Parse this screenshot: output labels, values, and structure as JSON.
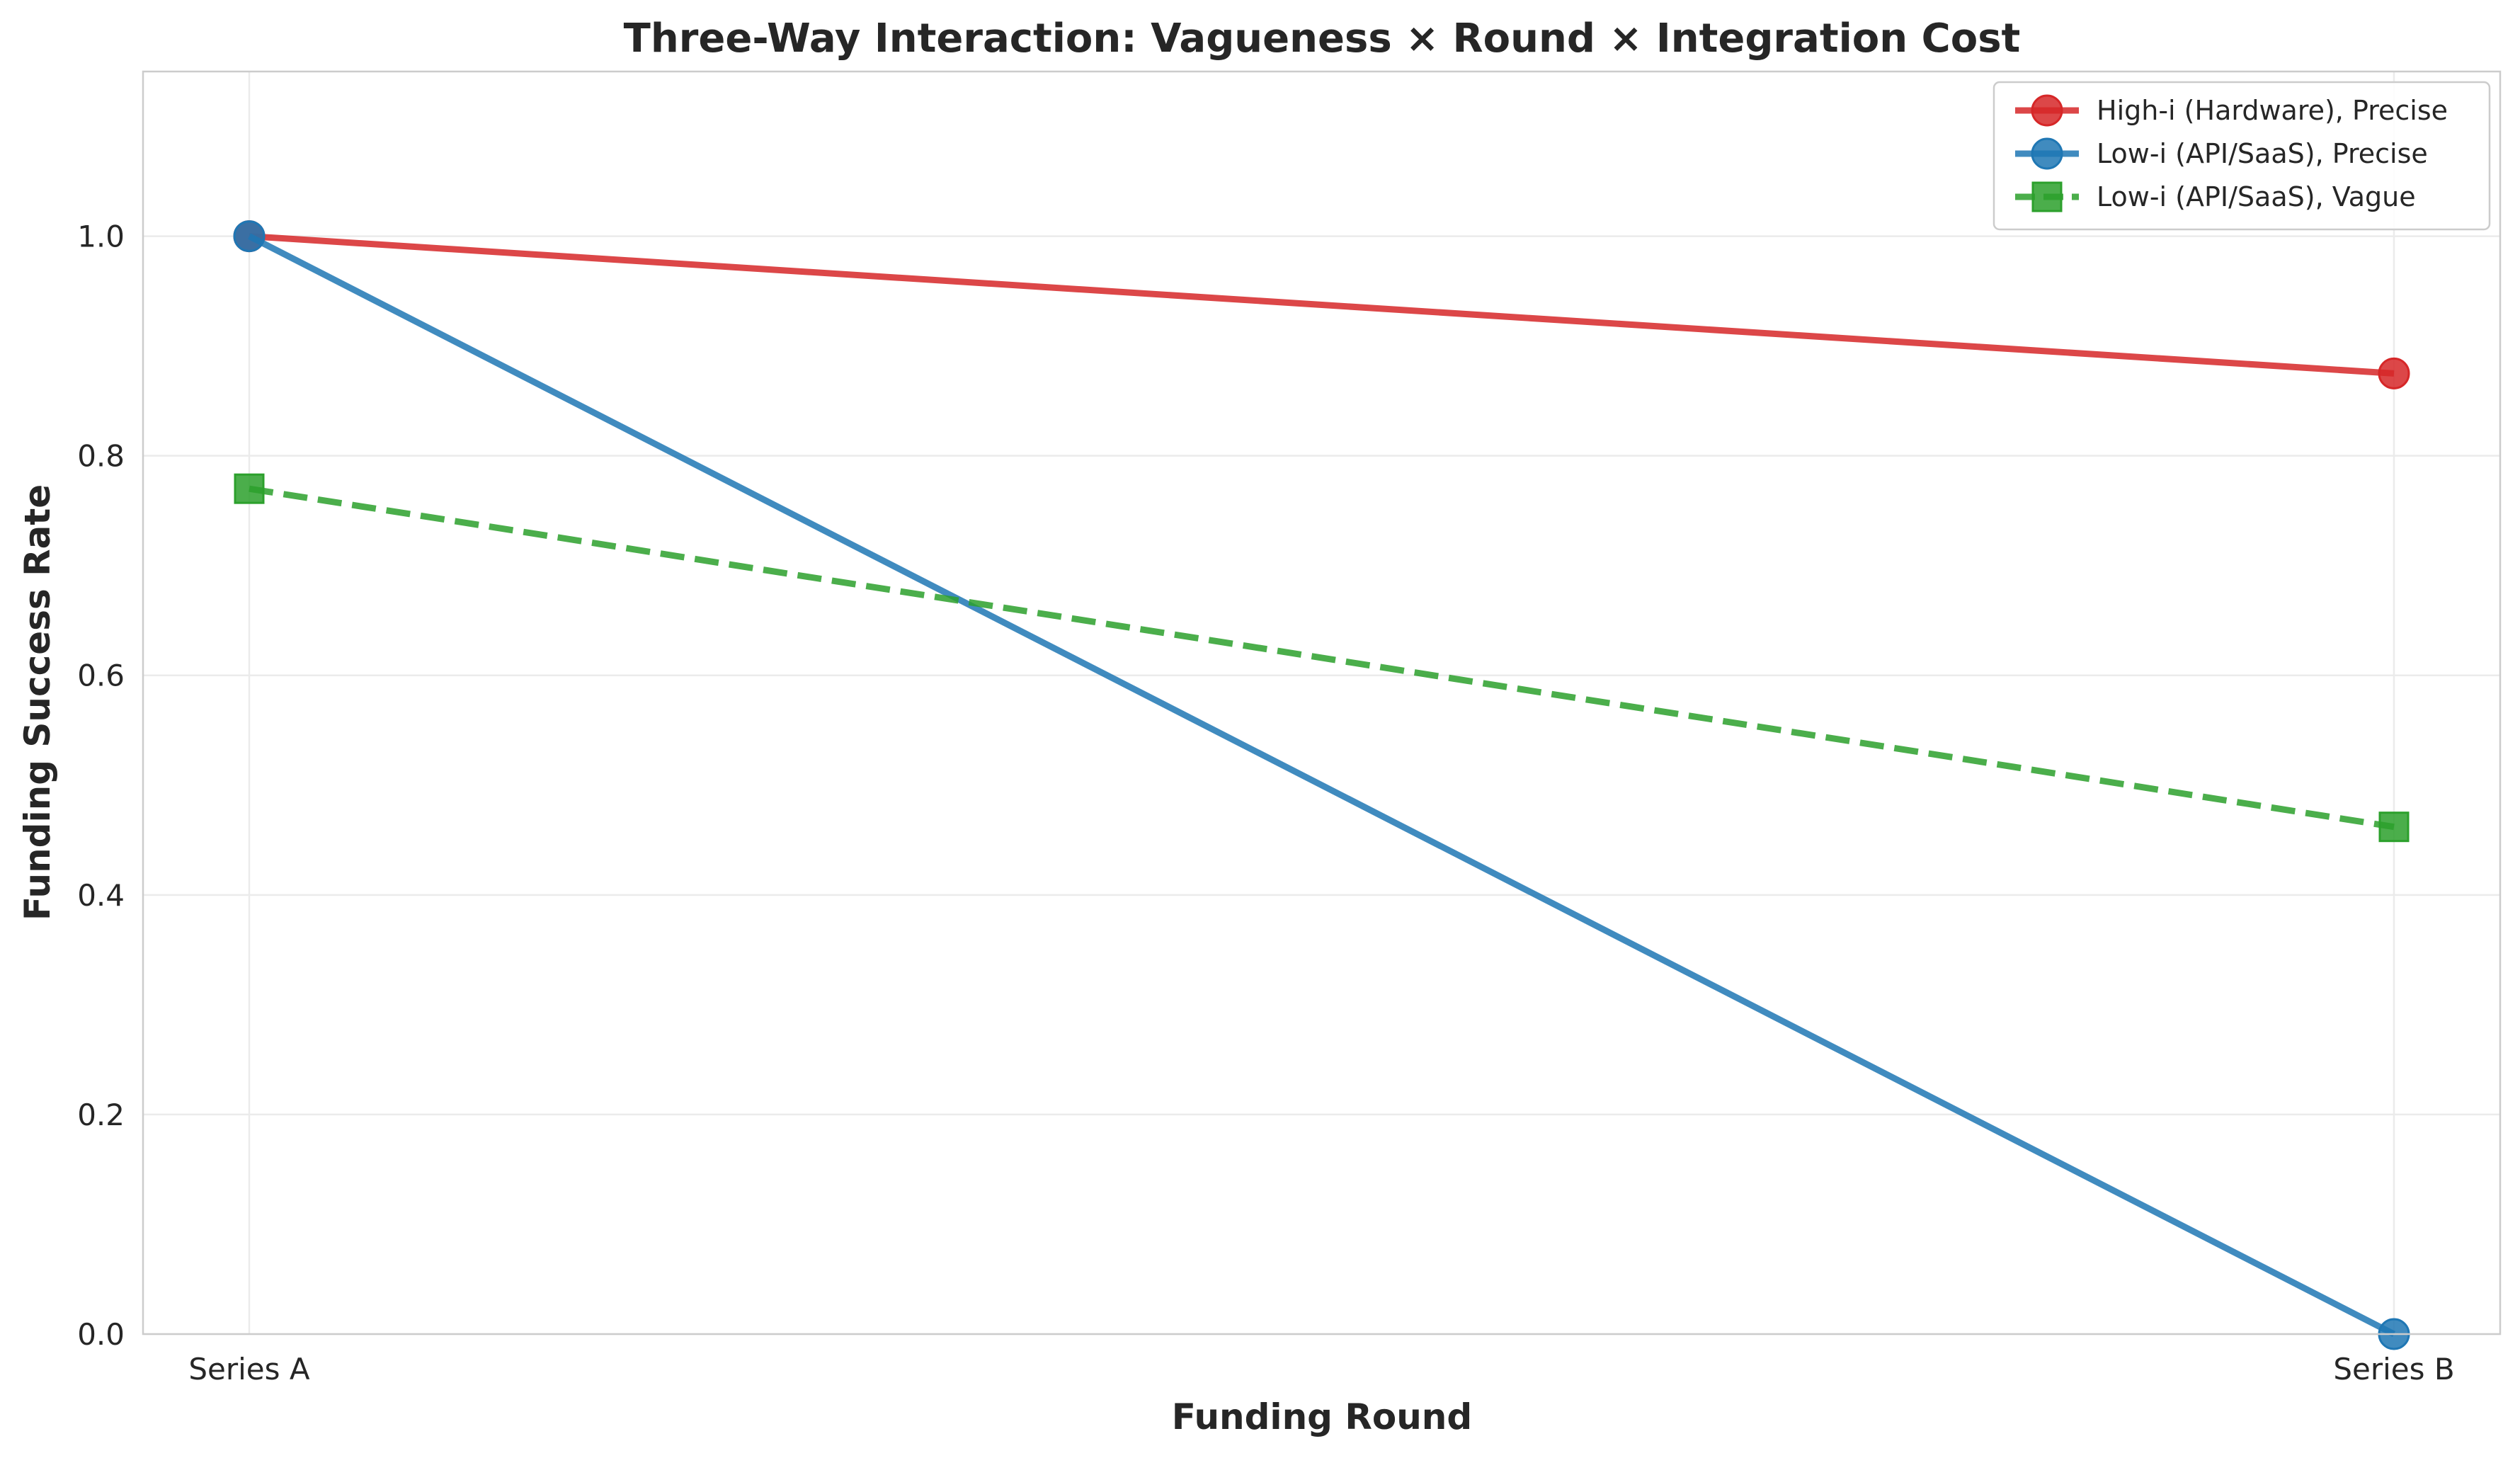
{
  "chart_data": {
    "type": "line",
    "title": "Three-Way Interaction: Vagueness × Round × Integration Cost",
    "xlabel": "Funding Round",
    "ylabel": "Funding Success Rate",
    "categories": [
      "Series A",
      "Series B"
    ],
    "ylim": [
      0,
      1.15
    ],
    "yticks": [
      0.0,
      0.2,
      0.4,
      0.6,
      0.8,
      1.0
    ],
    "ytick_labels": [
      "0.0",
      "0.2",
      "0.4",
      "0.6",
      "0.8",
      "1.0"
    ],
    "grid": true,
    "legend_position": "top-right",
    "series": [
      {
        "name": "High-i (Hardware), Precise",
        "values": [
          1.0,
          0.875
        ],
        "color": "#d62728",
        "marker": "circle",
        "line_style": "solid"
      },
      {
        "name": "Low-i (API/SaaS), Precise",
        "values": [
          1.0,
          0.0
        ],
        "color": "#1f77b4",
        "marker": "circle",
        "line_style": "solid"
      },
      {
        "name": "Low-i (API/SaaS), Vague",
        "values": [
          0.77,
          0.462
        ],
        "color": "#2ca02c",
        "marker": "square",
        "line_style": "dashed"
      }
    ]
  }
}
